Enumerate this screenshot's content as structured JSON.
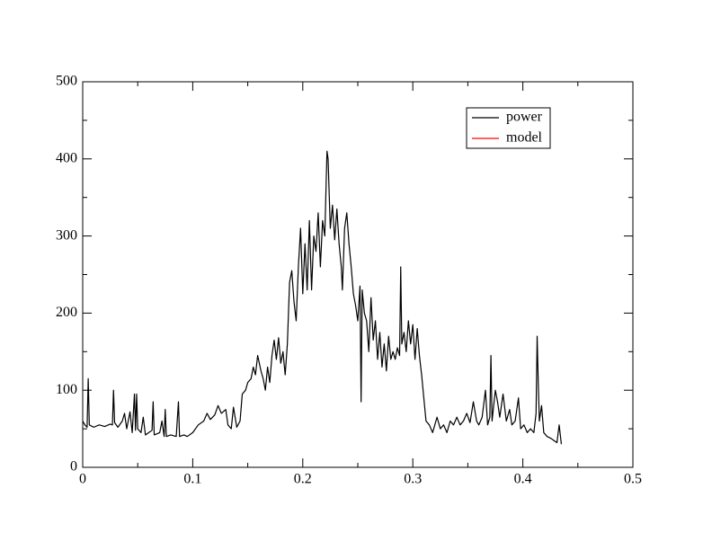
{
  "chart_data": {
    "type": "line",
    "xlim": [
      0,
      0.5
    ],
    "ylim": [
      0,
      500
    ],
    "xticks": [
      0,
      0.1,
      0.2,
      0.3,
      0.4,
      0.5
    ],
    "yticks": [
      0,
      100,
      200,
      300,
      400,
      500
    ],
    "xminorticks": [
      0.05,
      0.15,
      0.25,
      0.35,
      0.45
    ],
    "yminorticks": [
      50,
      150,
      250,
      350,
      450
    ],
    "grid": false,
    "legend": "upper right",
    "series": [
      {
        "name": "power",
        "color": "#000000",
        "x": [
          0,
          0.002,
          0.004,
          0.005,
          0.006,
          0.01,
          0.015,
          0.02,
          0.025,
          0.027,
          0.028,
          0.029,
          0.032,
          0.036,
          0.038,
          0.04,
          0.043,
          0.045,
          0.047,
          0.048,
          0.049,
          0.05,
          0.053,
          0.055,
          0.057,
          0.06,
          0.063,
          0.064,
          0.065,
          0.07,
          0.072,
          0.074,
          0.075,
          0.076,
          0.08,
          0.085,
          0.087,
          0.088,
          0.092,
          0.095,
          0.1,
          0.105,
          0.11,
          0.113,
          0.116,
          0.12,
          0.123,
          0.126,
          0.13,
          0.132,
          0.135,
          0.137,
          0.14,
          0.143,
          0.145,
          0.148,
          0.15,
          0.153,
          0.155,
          0.157,
          0.159,
          0.162,
          0.164,
          0.166,
          0.168,
          0.17,
          0.172,
          0.174,
          0.176,
          0.178,
          0.18,
          0.182,
          0.184,
          0.186,
          0.188,
          0.19,
          0.192,
          0.194,
          0.196,
          0.198,
          0.2,
          0.202,
          0.204,
          0.206,
          0.208,
          0.21,
          0.212,
          0.214,
          0.216,
          0.218,
          0.22,
          0.222,
          0.223,
          0.225,
          0.227,
          0.229,
          0.231,
          0.233,
          0.235,
          0.236,
          0.238,
          0.24,
          0.242,
          0.244,
          0.246,
          0.248,
          0.25,
          0.252,
          0.253,
          0.254,
          0.256,
          0.258,
          0.26,
          0.262,
          0.264,
          0.266,
          0.268,
          0.27,
          0.272,
          0.274,
          0.276,
          0.278,
          0.28,
          0.282,
          0.284,
          0.286,
          0.288,
          0.289,
          0.29,
          0.292,
          0.294,
          0.296,
          0.298,
          0.3,
          0.302,
          0.304,
          0.306,
          0.308,
          0.31,
          0.312,
          0.315,
          0.318,
          0.32,
          0.322,
          0.325,
          0.328,
          0.331,
          0.334,
          0.337,
          0.34,
          0.343,
          0.346,
          0.349,
          0.352,
          0.355,
          0.358,
          0.36,
          0.363,
          0.366,
          0.368,
          0.37,
          0.371,
          0.372,
          0.375,
          0.377,
          0.379,
          0.382,
          0.385,
          0.388,
          0.39,
          0.393,
          0.396,
          0.398,
          0.401,
          0.404,
          0.407,
          0.41,
          0.412,
          0.413,
          0.414,
          0.415,
          0.417,
          0.419,
          0.422,
          0.425,
          0.428,
          0.431,
          0.433,
          0.435
        ],
        "values": [
          60,
          55,
          52,
          115,
          55,
          52,
          55,
          53,
          56,
          55,
          100,
          58,
          52,
          60,
          70,
          50,
          72,
          45,
          95,
          48,
          95,
          50,
          45,
          65,
          42,
          45,
          48,
          85,
          42,
          45,
          60,
          40,
          75,
          40,
          42,
          40,
          85,
          40,
          42,
          40,
          45,
          55,
          60,
          70,
          62,
          68,
          80,
          70,
          75,
          55,
          50,
          78,
          52,
          60,
          95,
          100,
          110,
          115,
          130,
          120,
          145,
          125,
          115,
          100,
          130,
          110,
          145,
          165,
          140,
          168,
          135,
          150,
          120,
          160,
          240,
          255,
          215,
          190,
          260,
          310,
          225,
          290,
          230,
          320,
          230,
          300,
          280,
          330,
          260,
          320,
          300,
          410,
          400,
          310,
          340,
          295,
          335,
          290,
          260,
          230,
          310,
          330,
          290,
          260,
          225,
          210,
          190,
          235,
          85,
          230,
          200,
          190,
          150,
          220,
          165,
          190,
          140,
          175,
          130,
          160,
          125,
          170,
          140,
          150,
          140,
          155,
          145,
          260,
          160,
          175,
          150,
          190,
          160,
          185,
          140,
          180,
          145,
          120,
          90,
          60,
          55,
          45,
          55,
          65,
          50,
          55,
          45,
          60,
          55,
          65,
          55,
          60,
          70,
          58,
          85,
          60,
          55,
          65,
          100,
          55,
          65,
          145,
          60,
          100,
          85,
          65,
          95,
          60,
          75,
          55,
          60,
          90,
          50,
          55,
          45,
          50,
          45,
          70,
          170,
          110,
          60,
          80,
          45,
          40,
          38,
          35,
          32,
          55,
          30
        ]
      },
      {
        "name": "model",
        "color": "#ff0000",
        "x": [],
        "values": []
      }
    ]
  }
}
